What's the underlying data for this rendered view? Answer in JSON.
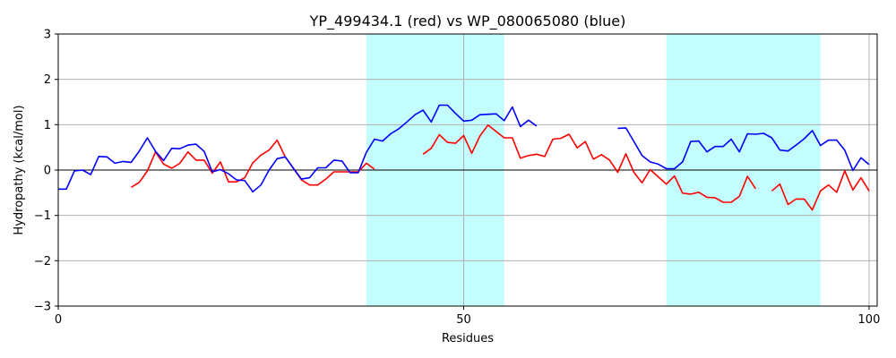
{
  "chart_data": {
    "type": "line",
    "title": "YP_499434.1 (red) vs WP_080065080 (blue)",
    "xlabel": "Residues",
    "ylabel": "Hydropathy (kcal/mol)",
    "xlim": [
      0,
      101
    ],
    "ylim": [
      -3,
      3
    ],
    "xticks": [
      0,
      50,
      100
    ],
    "yticks": [
      -3,
      -2,
      -1,
      0,
      1,
      2,
      3
    ],
    "grid": true,
    "zero_line": true,
    "highlight_color": "#c4fdfd",
    "highlight_regions": [
      [
        38,
        55
      ],
      [
        75,
        94
      ]
    ],
    "series": [
      {
        "color": "#ff0000",
        "segments": [
          [
            [
              9,
              -0.38
            ],
            [
              10,
              -0.27
            ],
            [
              11,
              -0.02
            ],
            [
              12,
              0.4
            ],
            [
              13,
              0.13
            ],
            [
              14,
              0.04
            ],
            [
              15,
              0.15
            ],
            [
              16,
              0.4
            ],
            [
              17,
              0.22
            ],
            [
              18,
              0.22
            ],
            [
              19,
              -0.07
            ],
            [
              20,
              0.18
            ],
            [
              21,
              -0.26
            ],
            [
              22,
              -0.26
            ],
            [
              23,
              -0.17
            ],
            [
              24,
              0.16
            ],
            [
              25,
              0.33
            ],
            [
              26,
              0.44
            ],
            [
              27,
              0.66
            ],
            [
              28,
              0.29
            ],
            [
              29,
              0.04
            ],
            [
              30,
              -0.22
            ],
            [
              31,
              -0.33
            ],
            [
              32,
              -0.33
            ],
            [
              33,
              -0.2
            ],
            [
              34,
              -0.04
            ],
            [
              35,
              -0.04
            ],
            [
              36,
              -0.04
            ],
            [
              37,
              -0.04
            ],
            [
              38,
              0.15
            ],
            [
              39,
              0.02
            ]
          ],
          [
            [
              45,
              0.35
            ],
            [
              46,
              0.48
            ],
            [
              47,
              0.78
            ],
            [
              48,
              0.61
            ],
            [
              49,
              0.59
            ],
            [
              50,
              0.76
            ],
            [
              51,
              0.37
            ],
            [
              52,
              0.75
            ],
            [
              53,
              0.99
            ],
            [
              54,
              0.85
            ],
            [
              55,
              0.71
            ],
            [
              56,
              0.71
            ],
            [
              57,
              0.26
            ],
            [
              58,
              0.32
            ],
            [
              59,
              0.35
            ],
            [
              60,
              0.3
            ],
            [
              61,
              0.68
            ],
            [
              62,
              0.7
            ],
            [
              63,
              0.79
            ],
            [
              64,
              0.49
            ],
            [
              65,
              0.63
            ],
            [
              66,
              0.24
            ],
            [
              67,
              0.34
            ],
            [
              68,
              0.22
            ],
            [
              69,
              -0.05
            ],
            [
              70,
              0.36
            ],
            [
              71,
              -0.05
            ],
            [
              72,
              -0.28
            ],
            [
              73,
              0.01
            ],
            [
              74,
              -0.15
            ],
            [
              75,
              -0.31
            ],
            [
              76,
              -0.13
            ],
            [
              77,
              -0.51
            ],
            [
              78,
              -0.53
            ],
            [
              79,
              -0.49
            ],
            [
              80,
              -0.6
            ],
            [
              81,
              -0.61
            ],
            [
              82,
              -0.71
            ],
            [
              83,
              -0.71
            ],
            [
              84,
              -0.58
            ],
            [
              85,
              -0.14
            ],
            [
              86,
              -0.41
            ]
          ],
          [
            [
              88,
              -0.46
            ],
            [
              89,
              -0.31
            ],
            [
              90,
              -0.76
            ],
            [
              91,
              -0.64
            ],
            [
              92,
              -0.64
            ],
            [
              93,
              -0.88
            ],
            [
              94,
              -0.46
            ],
            [
              95,
              -0.33
            ],
            [
              96,
              -0.49
            ],
            [
              97,
              -0.02
            ],
            [
              98,
              -0.44
            ],
            [
              99,
              -0.17
            ],
            [
              100,
              -0.46
            ]
          ]
        ]
      },
      {
        "color": "#0000ff",
        "segments": [
          [
            [
              0,
              -0.42
            ],
            [
              1,
              -0.42
            ],
            [
              2,
              -0.02
            ],
            [
              3,
              0.0
            ],
            [
              4,
              -0.1
            ],
            [
              5,
              0.3
            ],
            [
              6,
              0.29
            ],
            [
              7,
              0.15
            ],
            [
              8,
              0.19
            ],
            [
              9,
              0.17
            ],
            [
              10,
              0.42
            ],
            [
              11,
              0.71
            ],
            [
              12,
              0.41
            ],
            [
              13,
              0.21
            ],
            [
              14,
              0.48
            ],
            [
              15,
              0.47
            ],
            [
              16,
              0.55
            ],
            [
              17,
              0.57
            ],
            [
              18,
              0.41
            ],
            [
              19,
              -0.04
            ],
            [
              20,
              0.01
            ],
            [
              21,
              -0.08
            ],
            [
              22,
              -0.22
            ],
            [
              23,
              -0.23
            ],
            [
              24,
              -0.48
            ],
            [
              25,
              -0.33
            ],
            [
              26,
              0.0
            ],
            [
              27,
              0.25
            ],
            [
              28,
              0.29
            ],
            [
              29,
              0.04
            ],
            [
              30,
              -0.2
            ],
            [
              31,
              -0.17
            ],
            [
              32,
              0.05
            ],
            [
              33,
              0.05
            ],
            [
              34,
              0.22
            ],
            [
              35,
              0.2
            ],
            [
              36,
              -0.06
            ],
            [
              37,
              -0.06
            ],
            [
              38,
              0.39
            ],
            [
              39,
              0.68
            ],
            [
              40,
              0.64
            ],
            [
              41,
              0.8
            ],
            [
              42,
              0.91
            ],
            [
              43,
              1.06
            ],
            [
              44,
              1.22
            ],
            [
              45,
              1.32
            ],
            [
              46,
              1.06
            ],
            [
              47,
              1.43
            ],
            [
              48,
              1.43
            ],
            [
              49,
              1.25
            ],
            [
              50,
              1.08
            ],
            [
              51,
              1.1
            ],
            [
              52,
              1.22
            ],
            [
              53,
              1.23
            ],
            [
              54,
              1.24
            ],
            [
              55,
              1.09
            ],
            [
              56,
              1.39
            ],
            [
              57,
              0.96
            ],
            [
              58,
              1.1
            ],
            [
              59,
              0.97
            ]
          ],
          [
            [
              69,
              0.92
            ],
            [
              70,
              0.93
            ],
            [
              71,
              0.63
            ],
            [
              72,
              0.32
            ],
            [
              73,
              0.18
            ],
            [
              74,
              0.13
            ],
            [
              75,
              0.03
            ],
            [
              76,
              0.03
            ],
            [
              77,
              0.18
            ],
            [
              78,
              0.63
            ],
            [
              79,
              0.64
            ],
            [
              80,
              0.4
            ],
            [
              81,
              0.52
            ],
            [
              82,
              0.52
            ],
            [
              83,
              0.68
            ],
            [
              84,
              0.4
            ],
            [
              85,
              0.8
            ],
            [
              86,
              0.79
            ],
            [
              87,
              0.81
            ],
            [
              88,
              0.71
            ],
            [
              89,
              0.44
            ],
            [
              90,
              0.42
            ],
            [
              91,
              0.55
            ],
            [
              92,
              0.69
            ],
            [
              93,
              0.87
            ],
            [
              94,
              0.54
            ],
            [
              95,
              0.66
            ],
            [
              96,
              0.66
            ],
            [
              97,
              0.44
            ],
            [
              98,
              -0.01
            ],
            [
              99,
              0.27
            ],
            [
              100,
              0.12
            ]
          ]
        ]
      }
    ]
  }
}
